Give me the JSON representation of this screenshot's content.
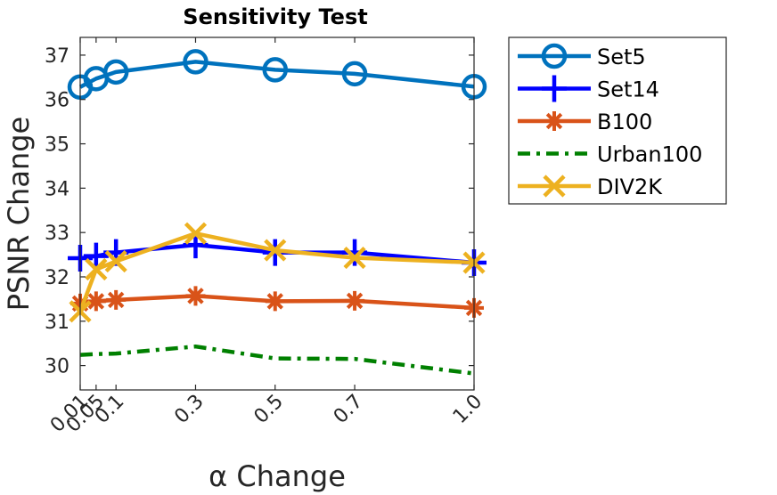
{
  "chart_data": {
    "type": "line",
    "title": "Sensitivity Test",
    "xlabel": "α Change",
    "ylabel": "PSNR Change",
    "x": [
      0.01,
      0.05,
      0.1,
      0.3,
      0.5,
      0.7,
      1.0
    ],
    "x_tick_labels": [
      "0.01",
      "0.05",
      "0.1",
      "0.3",
      "0.5",
      "0.7",
      "1.0"
    ],
    "y_ticks": [
      30,
      31,
      32,
      33,
      34,
      35,
      36,
      37
    ],
    "y_tick_labels": [
      "30",
      "31",
      "32",
      "33",
      "34",
      "35",
      "36",
      "37"
    ],
    "xlim": [
      0.01,
      1.0
    ],
    "ylim": [
      29.45,
      37.4
    ],
    "grid": false,
    "legend_position": "outside right",
    "series": [
      {
        "name": "Set5",
        "values": [
          36.28,
          36.47,
          36.62,
          36.85,
          36.67,
          36.58,
          36.29
        ],
        "color": "#0072BD",
        "marker": "circle",
        "line": "solid"
      },
      {
        "name": "Set14",
        "values": [
          32.42,
          32.47,
          32.55,
          32.72,
          32.55,
          32.55,
          32.32
        ],
        "color": "#0000FF",
        "marker": "plus",
        "line": "solid"
      },
      {
        "name": "B100",
        "values": [
          31.4,
          31.45,
          31.48,
          31.57,
          31.45,
          31.46,
          31.3
        ],
        "color": "#D95319",
        "marker": "asterisk",
        "line": "solid"
      },
      {
        "name": "Urban100",
        "values": [
          30.24,
          30.26,
          30.27,
          30.43,
          30.16,
          30.15,
          29.82
        ],
        "color": "#008000",
        "marker": "none",
        "line": "dashdot"
      },
      {
        "name": "DIV2K",
        "values": [
          31.22,
          32.17,
          32.35,
          32.98,
          32.6,
          32.43,
          32.32
        ],
        "color": "#EDB120",
        "marker": "x",
        "line": "solid"
      }
    ]
  }
}
